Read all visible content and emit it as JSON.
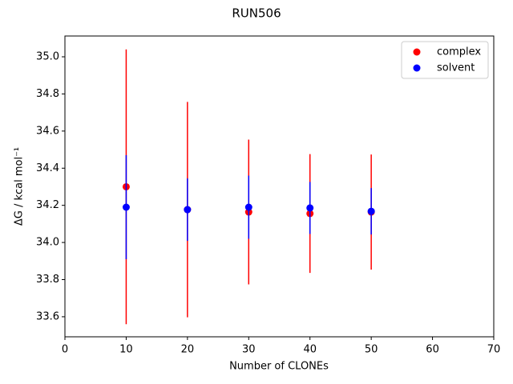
{
  "chart_data": {
    "type": "errorbar-scatter",
    "title": "RUN506",
    "x_label": "Number of CLONEs",
    "y_label": "ΔG / kcal mol⁻¹",
    "x": [
      10,
      20,
      30,
      40,
      50
    ],
    "series": [
      {
        "name": "complex",
        "color": "#ff0000",
        "values": [
          34.3,
          34.177,
          34.164,
          34.156,
          34.164
        ],
        "errors": [
          0.74,
          0.58,
          0.39,
          0.32,
          0.31
        ]
      },
      {
        "name": "solvent",
        "color": "#0000ff",
        "values": [
          34.19,
          34.177,
          34.19,
          34.186,
          34.168
        ],
        "errors": [
          0.28,
          0.168,
          0.17,
          0.14,
          0.125
        ]
      }
    ],
    "xlim": [
      0,
      70
    ],
    "xticks": [
      0,
      10,
      20,
      30,
      40,
      50,
      60,
      70
    ],
    "ylim": [
      33.492,
      35.112
    ],
    "yticks": [
      33.6,
      33.8,
      {
        "value": 34.0,
        "label": "34.0"
      },
      34.2,
      34.4,
      34.6,
      34.8,
      {
        "value": 35.0,
        "label": "35.0"
      }
    ],
    "legend": "upper right"
  }
}
